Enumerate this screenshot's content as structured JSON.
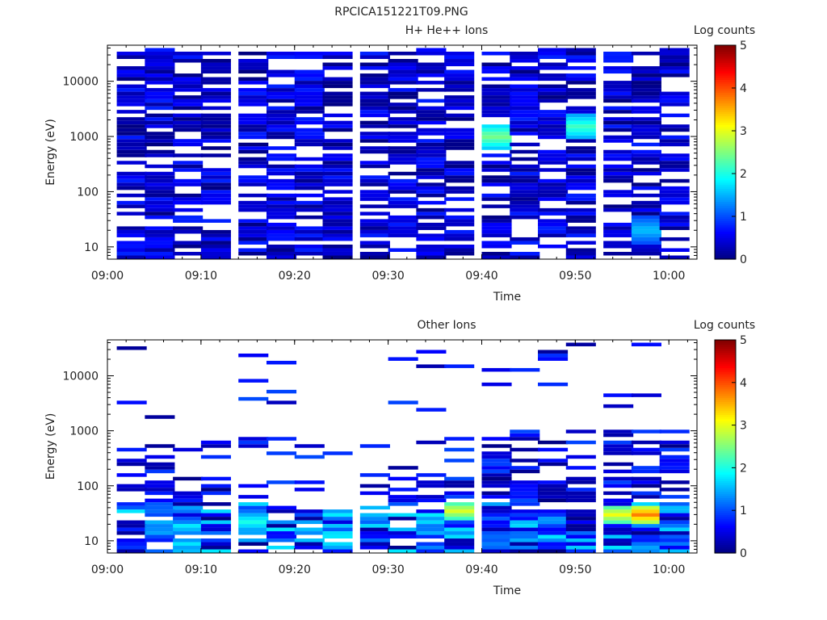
{
  "figure_title": "RPCICA151221T09.PNG",
  "colors": {
    "background": "#ffffff",
    "axis": "#000000",
    "text": "#222222"
  },
  "colorscale": [
    "#00007f",
    "#0000ff",
    "#007fff",
    "#00ffff",
    "#7fff7f",
    "#ffff00",
    "#ff7f00",
    "#ff0000",
    "#7f0000"
  ],
  "chart_data": [
    {
      "type": "heatmap",
      "title": "H+ He++ Ions",
      "xlabel": "Time",
      "ylabel": "Energy (eV)",
      "yscale": "log",
      "ylim": [
        6,
        45000
      ],
      "xlim": [
        "09:00",
        "10:03"
      ],
      "x_ticks": [
        "09:00",
        "09:10",
        "09:20",
        "09:30",
        "09:40",
        "09:50",
        "10:00"
      ],
      "y_ticks": [
        "10",
        "100",
        "1000",
        "10000"
      ],
      "colorbar": {
        "label": "Log counts",
        "range": [
          0,
          5
        ],
        "ticks": [
          "0",
          "1",
          "2",
          "3",
          "4",
          "5"
        ]
      },
      "time_bins_start": [
        "09:01",
        "09:04",
        "09:07",
        "09:10",
        "09:14",
        "09:17",
        "09:20",
        "09:23",
        "09:27",
        "09:30",
        "09:33",
        "09:36",
        "09:40",
        "09:43",
        "09:46",
        "09:49",
        "09:53",
        "09:56",
        "09:59"
      ],
      "time_bin_minutes": 3.2,
      "energy_range_eV": [
        6,
        40000
      ],
      "n_energy_channels": 58,
      "summary_log_counts": [
        {
          "time": "09:40",
          "energy_eV": 1000,
          "value": 2.5
        },
        {
          "time": "09:50",
          "energy_eV": 1500,
          "value": 2.2
        },
        {
          "time": "09:57",
          "energy_eV": 20,
          "value": 1.6
        }
      ]
    },
    {
      "type": "heatmap",
      "title": "Other Ions",
      "xlabel": "Time",
      "ylabel": "Energy (eV)",
      "yscale": "log",
      "ylim": [
        6,
        45000
      ],
      "xlim": [
        "09:00",
        "10:03"
      ],
      "x_ticks": [
        "09:00",
        "09:10",
        "09:20",
        "09:30",
        "09:40",
        "09:50",
        "10:00"
      ],
      "y_ticks": [
        "10",
        "100",
        "1000",
        "10000"
      ],
      "colorbar": {
        "label": "Log counts",
        "range": [
          0,
          5
        ],
        "ticks": [
          "0",
          "1",
          "2",
          "3",
          "4",
          "5"
        ]
      },
      "time_bins_start": [
        "09:01",
        "09:04",
        "09:07",
        "09:10",
        "09:14",
        "09:17",
        "09:20",
        "09:23",
        "09:27",
        "09:30",
        "09:33",
        "09:36",
        "09:40",
        "09:43",
        "09:46",
        "09:49",
        "09:53",
        "09:56",
        "09:59"
      ],
      "time_bin_minutes": 3.2,
      "energy_range_eV": [
        6,
        40000
      ],
      "n_energy_channels": 58,
      "summary_log_counts": [
        {
          "time": "09:37",
          "energy_eV": 35,
          "value": 3.0
        },
        {
          "time": "09:57",
          "energy_eV": 30,
          "value": 3.8
        },
        {
          "time": "09:53",
          "energy_eV": 30,
          "value": 3.1
        },
        {
          "time": "09:14",
          "energy_eV": 22,
          "value": 2.0
        }
      ]
    }
  ]
}
